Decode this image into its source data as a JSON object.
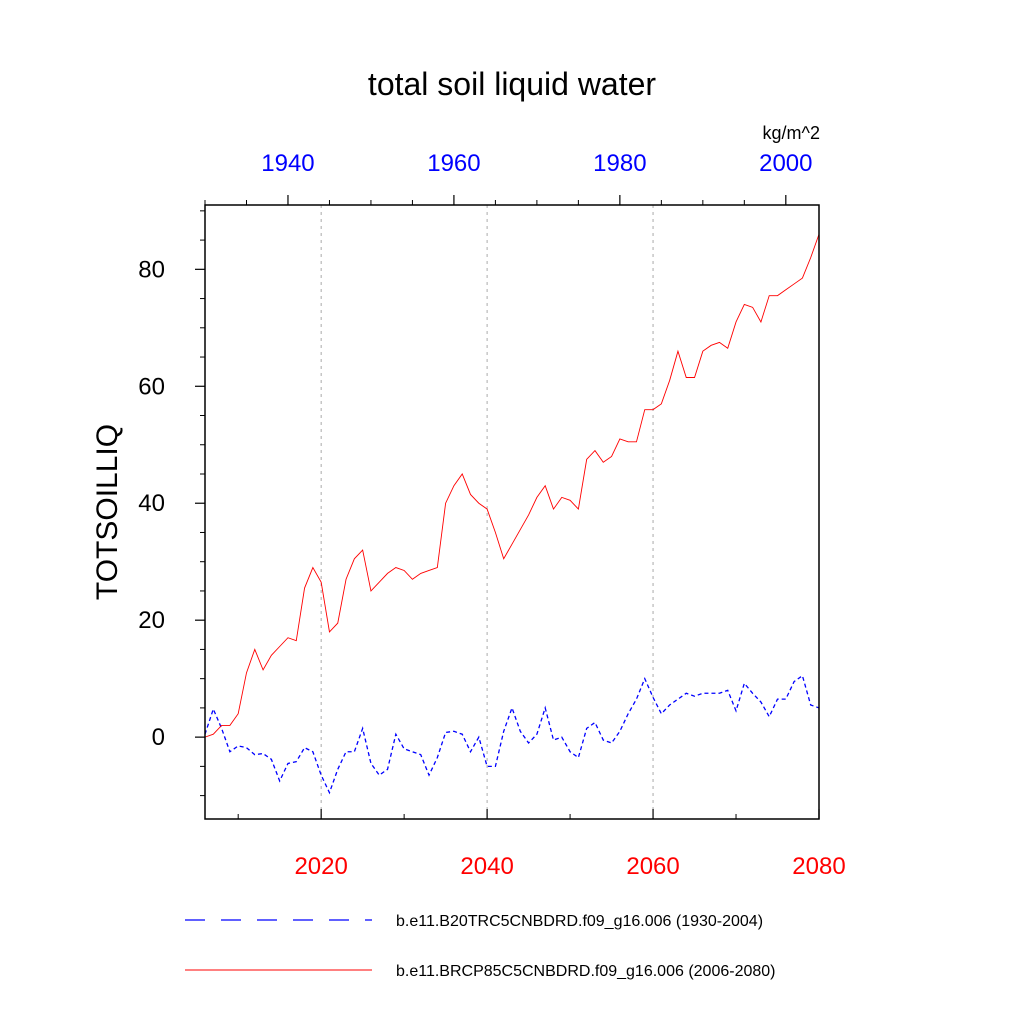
{
  "chart_data": {
    "type": "line",
    "title": "total soil liquid water",
    "ylabel": "TOTSOILLIQ",
    "units": "kg/m^2",
    "ylim": [
      -14,
      91
    ],
    "yticks": [
      "0",
      "20",
      "40",
      "60",
      "80"
    ],
    "top_axis": {
      "range": [
        1930,
        2004
      ],
      "color": "#0000ff",
      "ticks": [
        "1940",
        "1960",
        "1980",
        "2000"
      ]
    },
    "bottom_axis": {
      "range": [
        2006,
        2080
      ],
      "color": "#ff0000",
      "ticks": [
        "2020",
        "2040",
        "2060",
        "2080"
      ]
    },
    "vertical_grid": "dotted gray at 2020, 2040, 2060",
    "legend_position": "bottom",
    "series": [
      {
        "name": "b.e11.B20TRC5CNBDRD.f09_g16.006 (1930-2004)",
        "axis": "top",
        "color": "#0000ff",
        "style": "dashed",
        "x": [
          1930,
          1931,
          1932,
          1933,
          1934,
          1935,
          1936,
          1937,
          1938,
          1939,
          1940,
          1941,
          1942,
          1943,
          1944,
          1945,
          1946,
          1947,
          1948,
          1949,
          1950,
          1951,
          1952,
          1953,
          1954,
          1955,
          1956,
          1957,
          1958,
          1959,
          1960,
          1961,
          1962,
          1963,
          1964,
          1965,
          1966,
          1967,
          1968,
          1969,
          1970,
          1971,
          1972,
          1973,
          1974,
          1975,
          1976,
          1977,
          1978,
          1979,
          1980,
          1981,
          1982,
          1983,
          1984,
          1985,
          1986,
          1987,
          1988,
          1989,
          1990,
          1991,
          1992,
          1993,
          1994,
          1995,
          1996,
          1997,
          1998,
          1999,
          2000,
          2001,
          2002,
          2003,
          2004
        ],
        "values": [
          0.5,
          4.8,
          1.5,
          -2.5,
          -1.5,
          -1.8,
          -3,
          -2.8,
          -3.8,
          -7.5,
          -4.5,
          -4.2,
          -1.8,
          -2.5,
          -6.5,
          -9.5,
          -5.5,
          -2.5,
          -2.5,
          1.5,
          -4.5,
          -6.5,
          -5.5,
          0.5,
          -2,
          -2.5,
          -3,
          -6.5,
          -3.5,
          0.8,
          1,
          0.5,
          -2.5,
          0,
          -5,
          -5,
          1,
          5,
          1,
          -1,
          0.5,
          5,
          -0.5,
          0,
          -2.5,
          -3.5,
          1.5,
          2.5,
          -0.5,
          -1,
          1,
          4,
          6.5,
          10,
          6.8,
          4,
          5.5,
          6.5,
          7.5,
          7,
          7.5,
          7.5,
          7.5,
          8,
          4.5,
          9.2,
          7.5,
          6,
          3.5,
          6.5,
          6.5,
          9.5,
          10.5,
          5.5,
          5
        ]
      },
      {
        "name": "b.e11.BRCP85C5CNBDRD.f09_g16.006 (2006-2080)",
        "axis": "bottom",
        "color": "#ff0000",
        "style": "solid",
        "x": [
          2006,
          2007,
          2008,
          2009,
          2010,
          2011,
          2012,
          2013,
          2014,
          2015,
          2016,
          2017,
          2018,
          2019,
          2020,
          2021,
          2022,
          2023,
          2024,
          2025,
          2026,
          2027,
          2028,
          2029,
          2030,
          2031,
          2032,
          2033,
          2034,
          2035,
          2036,
          2037,
          2038,
          2039,
          2040,
          2041,
          2042,
          2043,
          2044,
          2045,
          2046,
          2047,
          2048,
          2049,
          2050,
          2051,
          2052,
          2053,
          2054,
          2055,
          2056,
          2057,
          2058,
          2059,
          2060,
          2061,
          2062,
          2063,
          2064,
          2065,
          2066,
          2067,
          2068,
          2069,
          2070,
          2071,
          2072,
          2073,
          2074,
          2075,
          2076,
          2077,
          2078,
          2079,
          2080
        ],
        "values": [
          0,
          0.5,
          2,
          2,
          4,
          11,
          15,
          11.5,
          14,
          15.5,
          17,
          16.5,
          25.5,
          29,
          26.5,
          18,
          19.5,
          27,
          30.5,
          32,
          25,
          26.5,
          28,
          29,
          28.5,
          27,
          28,
          28.5,
          29,
          40,
          43,
          45,
          41.5,
          40,
          39,
          35,
          30.5,
          33,
          35.5,
          38,
          41,
          43,
          39,
          41,
          40.5,
          39,
          47.5,
          49,
          47,
          48,
          51,
          50.5,
          50.5,
          56,
          56,
          57,
          61,
          66,
          61.5,
          61.5,
          66,
          67,
          67.5,
          66.5,
          71,
          74,
          73.5,
          71,
          75.5,
          75.5,
          76.5,
          77.5,
          78.5,
          82,
          86
        ]
      }
    ]
  }
}
